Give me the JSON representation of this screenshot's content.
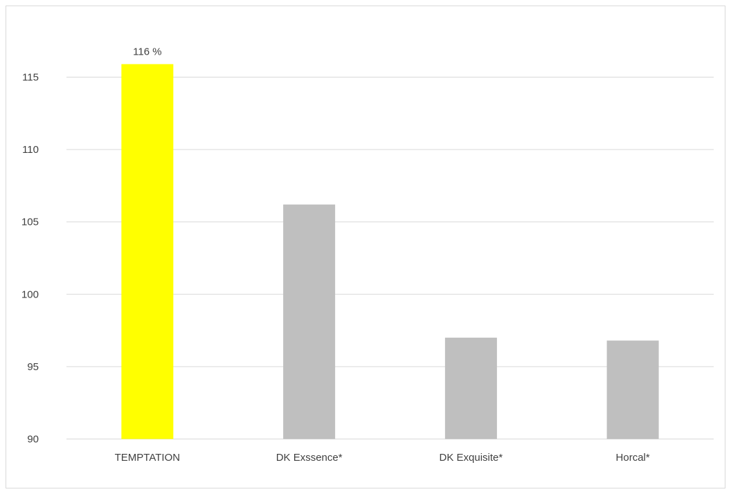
{
  "chart_data": {
    "type": "bar",
    "categories": [
      "TEMPTATION",
      "DK Exssence*",
      "DK Exquisite*",
      "Horcal*"
    ],
    "values": [
      115.9,
      106.2,
      97.0,
      96.8
    ],
    "data_labels": [
      "116 %",
      "",
      "",
      ""
    ],
    "colors": [
      "#ffff00",
      "#bfbfbf",
      "#bfbfbf",
      "#bfbfbf"
    ],
    "ylim": [
      90,
      117.5
    ],
    "yticks": [
      90,
      95,
      100,
      105,
      110,
      115
    ],
    "ytick_labels": [
      "90",
      "95",
      "100",
      "105",
      "110",
      "115"
    ],
    "grid": true,
    "gridline_color": "#d9d9d9",
    "axis_label_color": "#404040",
    "title": "",
    "xlabel": "",
    "ylabel": ""
  }
}
